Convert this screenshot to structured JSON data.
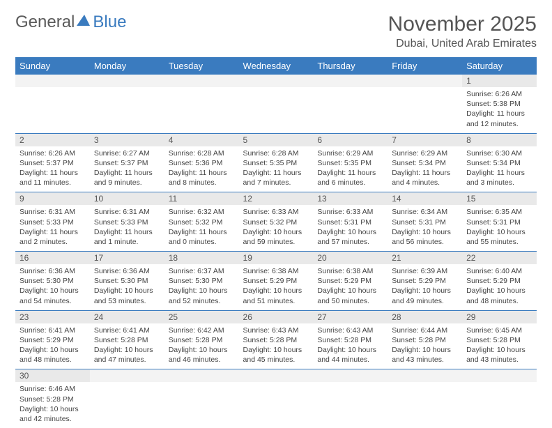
{
  "logo": {
    "part1": "General",
    "part2": "Blue"
  },
  "title": "November 2025",
  "location": "Dubai, United Arab Emirates",
  "colors": {
    "header_bg": "#3a7bbf",
    "header_text": "#ffffff",
    "daynum_bg": "#e9e9e9",
    "row_divider": "#3a7bbf",
    "text": "#444444",
    "title_text": "#555555"
  },
  "weekdays": [
    "Sunday",
    "Monday",
    "Tuesday",
    "Wednesday",
    "Thursday",
    "Friday",
    "Saturday"
  ],
  "weeks": [
    {
      "cells": [
        null,
        null,
        null,
        null,
        null,
        null,
        {
          "num": "1",
          "sunrise": "Sunrise: 6:26 AM",
          "sunset": "Sunset: 5:38 PM",
          "daylight": "Daylight: 11 hours and 12 minutes."
        }
      ]
    },
    {
      "cells": [
        {
          "num": "2",
          "sunrise": "Sunrise: 6:26 AM",
          "sunset": "Sunset: 5:37 PM",
          "daylight": "Daylight: 11 hours and 11 minutes."
        },
        {
          "num": "3",
          "sunrise": "Sunrise: 6:27 AM",
          "sunset": "Sunset: 5:37 PM",
          "daylight": "Daylight: 11 hours and 9 minutes."
        },
        {
          "num": "4",
          "sunrise": "Sunrise: 6:28 AM",
          "sunset": "Sunset: 5:36 PM",
          "daylight": "Daylight: 11 hours and 8 minutes."
        },
        {
          "num": "5",
          "sunrise": "Sunrise: 6:28 AM",
          "sunset": "Sunset: 5:35 PM",
          "daylight": "Daylight: 11 hours and 7 minutes."
        },
        {
          "num": "6",
          "sunrise": "Sunrise: 6:29 AM",
          "sunset": "Sunset: 5:35 PM",
          "daylight": "Daylight: 11 hours and 6 minutes."
        },
        {
          "num": "7",
          "sunrise": "Sunrise: 6:29 AM",
          "sunset": "Sunset: 5:34 PM",
          "daylight": "Daylight: 11 hours and 4 minutes."
        },
        {
          "num": "8",
          "sunrise": "Sunrise: 6:30 AM",
          "sunset": "Sunset: 5:34 PM",
          "daylight": "Daylight: 11 hours and 3 minutes."
        }
      ]
    },
    {
      "cells": [
        {
          "num": "9",
          "sunrise": "Sunrise: 6:31 AM",
          "sunset": "Sunset: 5:33 PM",
          "daylight": "Daylight: 11 hours and 2 minutes."
        },
        {
          "num": "10",
          "sunrise": "Sunrise: 6:31 AM",
          "sunset": "Sunset: 5:33 PM",
          "daylight": "Daylight: 11 hours and 1 minute."
        },
        {
          "num": "11",
          "sunrise": "Sunrise: 6:32 AM",
          "sunset": "Sunset: 5:32 PM",
          "daylight": "Daylight: 11 hours and 0 minutes."
        },
        {
          "num": "12",
          "sunrise": "Sunrise: 6:33 AM",
          "sunset": "Sunset: 5:32 PM",
          "daylight": "Daylight: 10 hours and 59 minutes."
        },
        {
          "num": "13",
          "sunrise": "Sunrise: 6:33 AM",
          "sunset": "Sunset: 5:31 PM",
          "daylight": "Daylight: 10 hours and 57 minutes."
        },
        {
          "num": "14",
          "sunrise": "Sunrise: 6:34 AM",
          "sunset": "Sunset: 5:31 PM",
          "daylight": "Daylight: 10 hours and 56 minutes."
        },
        {
          "num": "15",
          "sunrise": "Sunrise: 6:35 AM",
          "sunset": "Sunset: 5:31 PM",
          "daylight": "Daylight: 10 hours and 55 minutes."
        }
      ]
    },
    {
      "cells": [
        {
          "num": "16",
          "sunrise": "Sunrise: 6:36 AM",
          "sunset": "Sunset: 5:30 PM",
          "daylight": "Daylight: 10 hours and 54 minutes."
        },
        {
          "num": "17",
          "sunrise": "Sunrise: 6:36 AM",
          "sunset": "Sunset: 5:30 PM",
          "daylight": "Daylight: 10 hours and 53 minutes."
        },
        {
          "num": "18",
          "sunrise": "Sunrise: 6:37 AM",
          "sunset": "Sunset: 5:30 PM",
          "daylight": "Daylight: 10 hours and 52 minutes."
        },
        {
          "num": "19",
          "sunrise": "Sunrise: 6:38 AM",
          "sunset": "Sunset: 5:29 PM",
          "daylight": "Daylight: 10 hours and 51 minutes."
        },
        {
          "num": "20",
          "sunrise": "Sunrise: 6:38 AM",
          "sunset": "Sunset: 5:29 PM",
          "daylight": "Daylight: 10 hours and 50 minutes."
        },
        {
          "num": "21",
          "sunrise": "Sunrise: 6:39 AM",
          "sunset": "Sunset: 5:29 PM",
          "daylight": "Daylight: 10 hours and 49 minutes."
        },
        {
          "num": "22",
          "sunrise": "Sunrise: 6:40 AM",
          "sunset": "Sunset: 5:29 PM",
          "daylight": "Daylight: 10 hours and 48 minutes."
        }
      ]
    },
    {
      "cells": [
        {
          "num": "23",
          "sunrise": "Sunrise: 6:41 AM",
          "sunset": "Sunset: 5:29 PM",
          "daylight": "Daylight: 10 hours and 48 minutes."
        },
        {
          "num": "24",
          "sunrise": "Sunrise: 6:41 AM",
          "sunset": "Sunset: 5:28 PM",
          "daylight": "Daylight: 10 hours and 47 minutes."
        },
        {
          "num": "25",
          "sunrise": "Sunrise: 6:42 AM",
          "sunset": "Sunset: 5:28 PM",
          "daylight": "Daylight: 10 hours and 46 minutes."
        },
        {
          "num": "26",
          "sunrise": "Sunrise: 6:43 AM",
          "sunset": "Sunset: 5:28 PM",
          "daylight": "Daylight: 10 hours and 45 minutes."
        },
        {
          "num": "27",
          "sunrise": "Sunrise: 6:43 AM",
          "sunset": "Sunset: 5:28 PM",
          "daylight": "Daylight: 10 hours and 44 minutes."
        },
        {
          "num": "28",
          "sunrise": "Sunrise: 6:44 AM",
          "sunset": "Sunset: 5:28 PM",
          "daylight": "Daylight: 10 hours and 43 minutes."
        },
        {
          "num": "29",
          "sunrise": "Sunrise: 6:45 AM",
          "sunset": "Sunset: 5:28 PM",
          "daylight": "Daylight: 10 hours and 43 minutes."
        }
      ]
    },
    {
      "cells": [
        {
          "num": "30",
          "sunrise": "Sunrise: 6:46 AM",
          "sunset": "Sunset: 5:28 PM",
          "daylight": "Daylight: 10 hours and 42 minutes."
        },
        null,
        null,
        null,
        null,
        null,
        null
      ]
    }
  ]
}
